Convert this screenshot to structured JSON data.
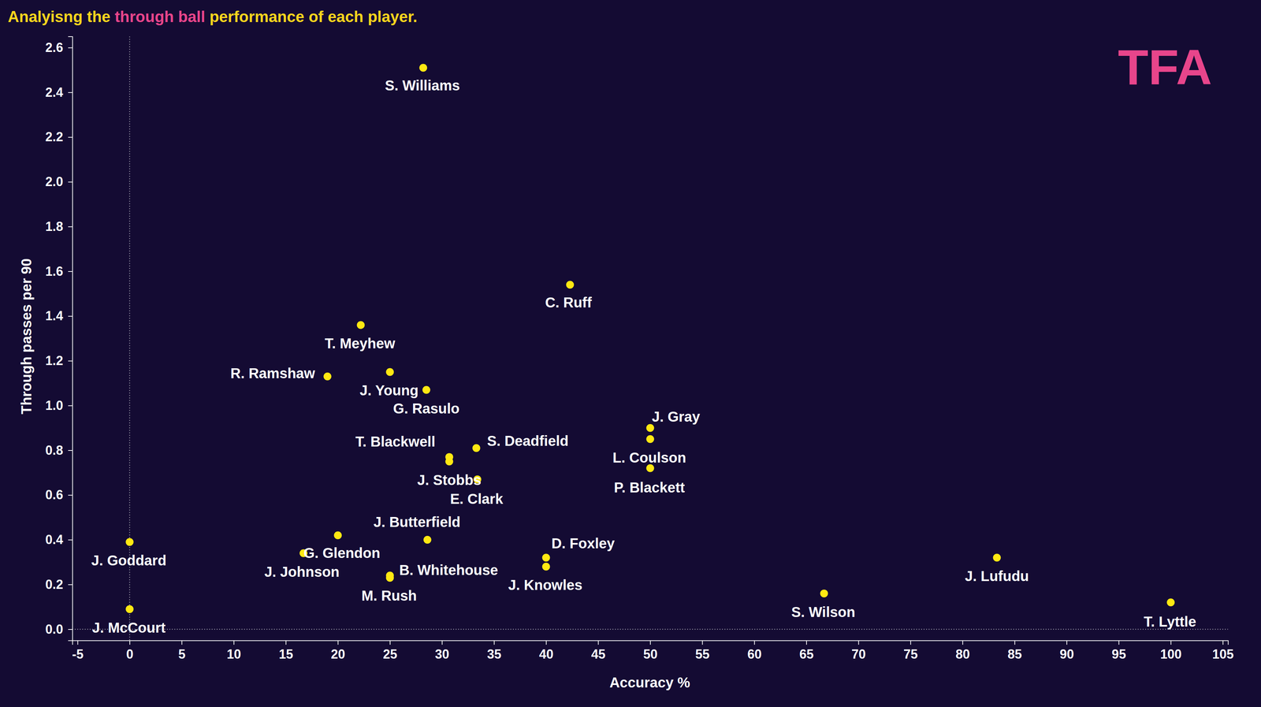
{
  "chart_data": {
    "type": "scatter",
    "title": "Analyisng the through ball performance of each player.",
    "title_highlight": "through ball",
    "logo": "TFA",
    "x_label": "Accuracy %",
    "y_label": "Through passes per 90",
    "labels": [
      "S. Williams",
      "C. Ruff",
      "T. Meyhew",
      "R. Ramshaw",
      "J. Young",
      "G. Rasulo",
      "J. Gray",
      "L. Coulson",
      "P. Blackett",
      "S. Deadfield",
      "T. Blackwell",
      "J. Stobbs",
      "E. Clark",
      "J. Butterfield",
      "G. Glendon",
      "J. Johnson",
      "B. Whitehouse",
      "M. Rush",
      "D. Foxley",
      "J. Knowles",
      "J. Goddard",
      "J. McCourt",
      "S. Wilson",
      "J. Lufudu",
      "T. Lyttle"
    ],
    "x": [
      28.2,
      42.3,
      22.2,
      19.0,
      25.0,
      28.5,
      50.0,
      50.0,
      50.0,
      33.3,
      30.7,
      30.7,
      33.4,
      28.6,
      20.0,
      16.7,
      25.0,
      25.0,
      40.0,
      40.0,
      0,
      0,
      66.7,
      83.3,
      100
    ],
    "y": [
      2.51,
      1.54,
      1.36,
      1.13,
      1.15,
      1.07,
      0.9,
      0.85,
      0.72,
      0.81,
      0.77,
      0.75,
      0.67,
      0.4,
      0.42,
      0.34,
      0.24,
      0.23,
      0.32,
      0.28,
      0.39,
      0.09,
      0.16,
      0.32,
      0.12
    ],
    "color": "#ffe812",
    "marker": "circle",
    "reference_lines": [
      {
        "axis": "x",
        "value": 0
      },
      {
        "axis": "y",
        "value": 0
      }
    ],
    "xlim": [
      -5.5,
      105.5
    ],
    "ylim": [
      -0.05,
      2.65
    ],
    "xticks": [
      -5,
      0,
      5,
      10,
      15,
      20,
      25,
      30,
      35,
      40,
      45,
      50,
      55,
      60,
      65,
      70,
      75,
      80,
      85,
      90,
      95,
      100,
      105
    ],
    "yticks": [
      {
        "value": 0,
        "label": "0.0"
      },
      0.2,
      0.4,
      0.6,
      0.8,
      {
        "value": 1,
        "label": "1.0"
      },
      1.2,
      1.4,
      1.6,
      1.8,
      {
        "value": 2,
        "label": "2.0"
      },
      2.2,
      2.4,
      2.6
    ],
    "grid": false
  }
}
